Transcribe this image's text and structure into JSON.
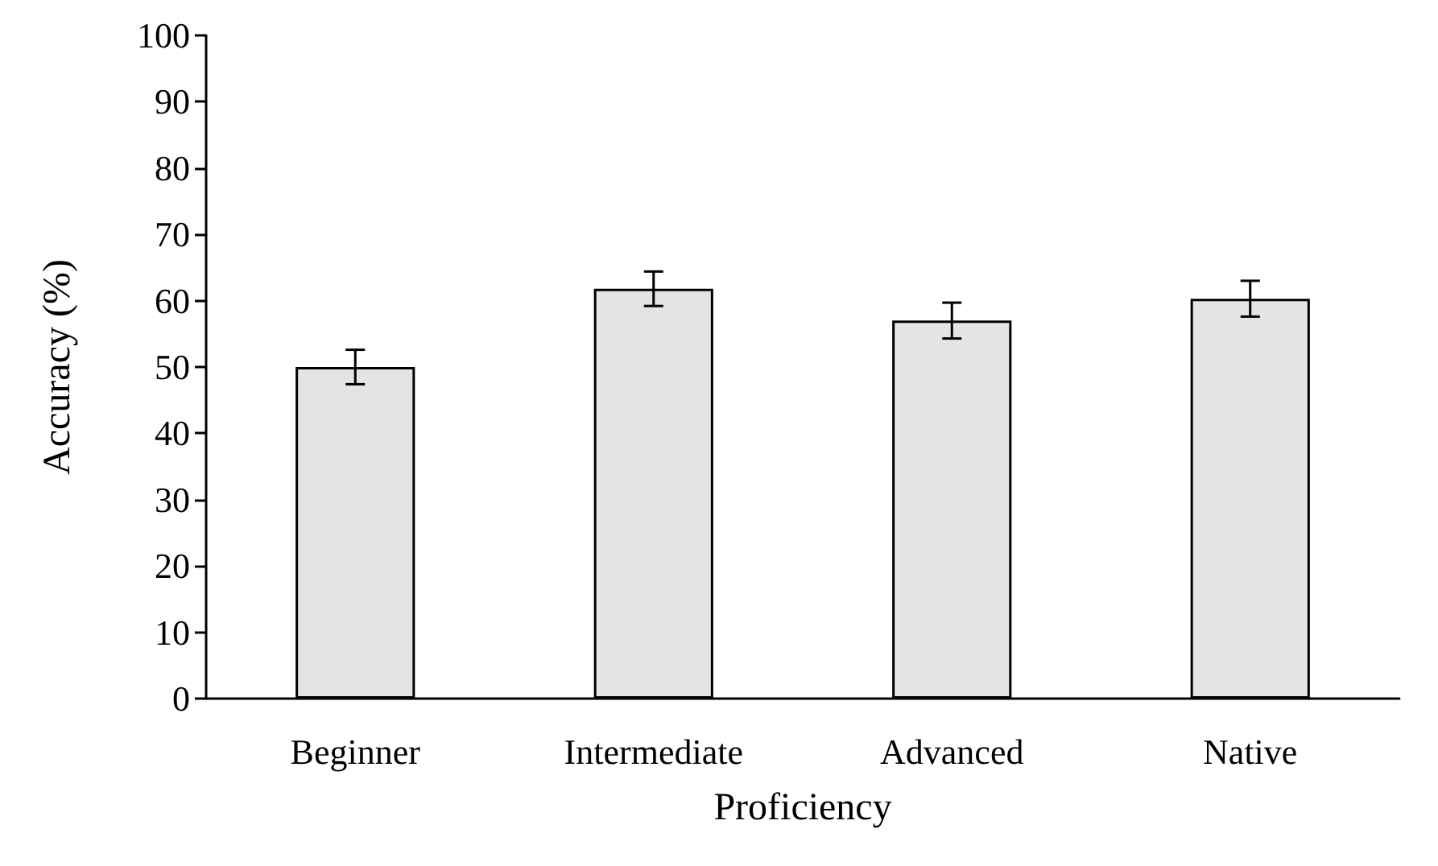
{
  "chart_data": {
    "type": "bar",
    "xlabel": "Proficiency",
    "ylabel": "Accuracy (%)",
    "categories": [
      "Beginner",
      "Intermediate",
      "Advanced",
      "Native"
    ],
    "values": [
      50,
      61.8,
      57,
      60.3
    ],
    "errors": [
      2.6,
      2.6,
      2.7,
      2.7
    ],
    "color": "#e4e4e4",
    "ylim": [
      0,
      100
    ],
    "yticks": [
      0,
      10,
      20,
      30,
      40,
      50,
      60,
      70,
      80,
      90,
      100
    ],
    "grid": false
  }
}
